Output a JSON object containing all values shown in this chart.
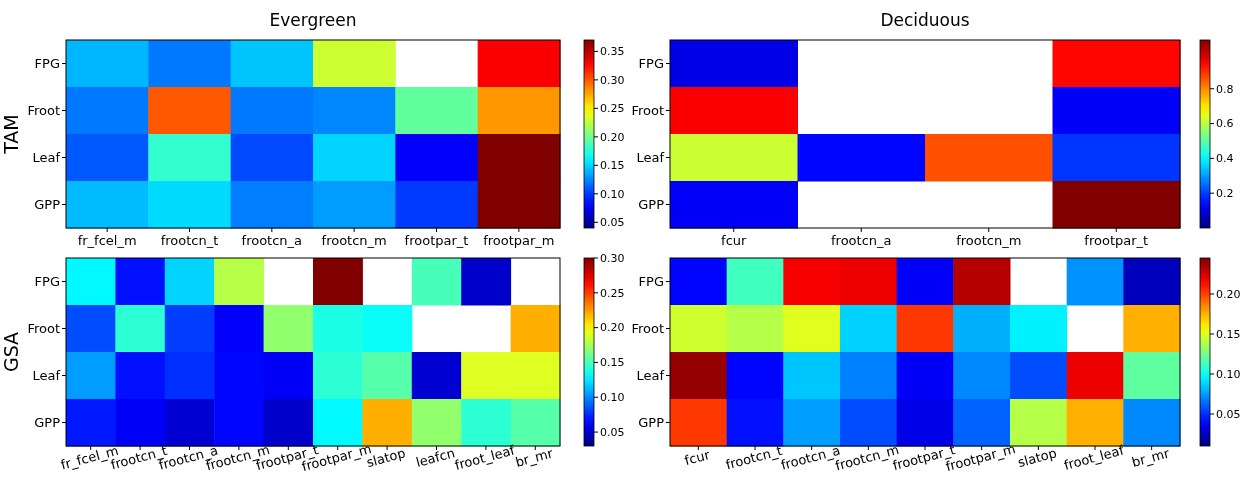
{
  "chart_data": [
    {
      "type": "heatmap",
      "title": "Evergreen",
      "ylabel": "TAM",
      "categories": [
        "fr_fcel_m",
        "frootcn_t",
        "frootcn_a",
        "frootcn_m",
        "frootpar_t",
        "frootpar_m"
      ],
      "y_categories": [
        "FPG",
        "Froot",
        "Leaf",
        "GPP"
      ],
      "cells": [
        [
          0.14,
          0.12,
          0.145,
          0.23,
          null,
          0.33
        ],
        [
          0.12,
          0.3,
          0.12,
          0.125,
          0.195,
          0.28
        ],
        [
          0.11,
          0.18,
          0.105,
          0.15,
          0.08,
          0.37
        ],
        [
          0.142,
          0.152,
          0.122,
          0.132,
          0.1,
          0.37
        ]
      ],
      "clim": [
        0.04,
        0.37
      ],
      "cticks": [
        0.05,
        {
          "value": 0.1,
          "label": "0.10"
        },
        0.15,
        {
          "value": 0.2,
          "label": "0.20"
        },
        0.25,
        {
          "value": 0.3,
          "label": "0.30"
        },
        0.35
      ]
    },
    {
      "type": "heatmap",
      "title": "Deciduous",
      "categories": [
        "fcur",
        "frootcn_a",
        "frootcn_m",
        "frootpar_t"
      ],
      "y_categories": [
        "FPG",
        "Froot",
        "Leaf",
        "GPP"
      ],
      "cells": [
        [
          0.11,
          null,
          null,
          0.94
        ],
        [
          0.95,
          null,
          null,
          0.13
        ],
        [
          0.62,
          0.14,
          0.86,
          0.19
        ],
        [
          0.13,
          null,
          null,
          1.08
        ]
      ],
      "clim": [
        0,
        1.08
      ],
      "cticks": [
        0.2,
        0.4,
        0.6,
        0.8
      ]
    },
    {
      "type": "heatmap",
      "ylabel": "GSA",
      "categories": [
        "fr_fcel_m",
        "frootcn_t",
        "frootcn_a",
        "frootcn_m",
        "frootpar_t",
        "frootpar_m",
        "slatop",
        "leafcn",
        "froot_leaf",
        "br_mr"
      ],
      "y_categories": [
        "FPG",
        "Froot",
        "Leaf",
        "GPP"
      ],
      "cells": [
        [
          0.13,
          0.068,
          0.12,
          0.18,
          null,
          0.3,
          null,
          0.15,
          0.05,
          null
        ],
        [
          0.084,
          0.143,
          0.08,
          0.063,
          0.17,
          0.138,
          0.133,
          null,
          null,
          0.22
        ],
        [
          0.105,
          0.068,
          0.076,
          0.065,
          0.062,
          0.143,
          0.154,
          0.052,
          0.19,
          0.19
        ],
        [
          0.07,
          0.062,
          0.052,
          0.065,
          0.05,
          0.13,
          0.22,
          0.17,
          0.143,
          0.154
        ]
      ],
      "clim": [
        0.03,
        0.3
      ],
      "cticks": [
        0.05,
        {
          "value": 0.1,
          "label": "0.10"
        },
        0.15,
        {
          "value": 0.2,
          "label": "0.20"
        },
        0.25,
        {
          "value": 0.3,
          "label": "0.30"
        }
      ]
    },
    {
      "type": "heatmap",
      "categories": [
        "fcur",
        "frootcn_t",
        "frootcn_a",
        "frootcn_m",
        "frootpar_t",
        "frootpar_m",
        "slatop",
        "froot_leaf",
        "br_mr"
      ],
      "y_categories": [
        "FPG",
        "Froot",
        "Leaf",
        "GPP"
      ],
      "cells": [
        [
          0.04,
          0.113,
          0.217,
          0.22,
          0.038,
          0.233,
          null,
          0.073,
          0.024
        ],
        [
          0.146,
          0.14,
          0.15,
          0.088,
          0.203,
          0.08,
          0.095,
          null,
          0.175
        ],
        [
          0.24,
          0.04,
          0.085,
          0.069,
          0.038,
          0.071,
          0.057,
          0.22,
          0.12
        ],
        [
          0.203,
          0.043,
          0.076,
          0.057,
          0.034,
          0.062,
          0.14,
          0.175,
          0.071
        ]
      ],
      "clim": [
        0.01,
        0.245
      ],
      "cticks": [
        0.05,
        {
          "value": 0.1,
          "label": "0.10"
        },
        0.15,
        {
          "value": 0.2,
          "label": "0.20"
        }
      ]
    }
  ]
}
